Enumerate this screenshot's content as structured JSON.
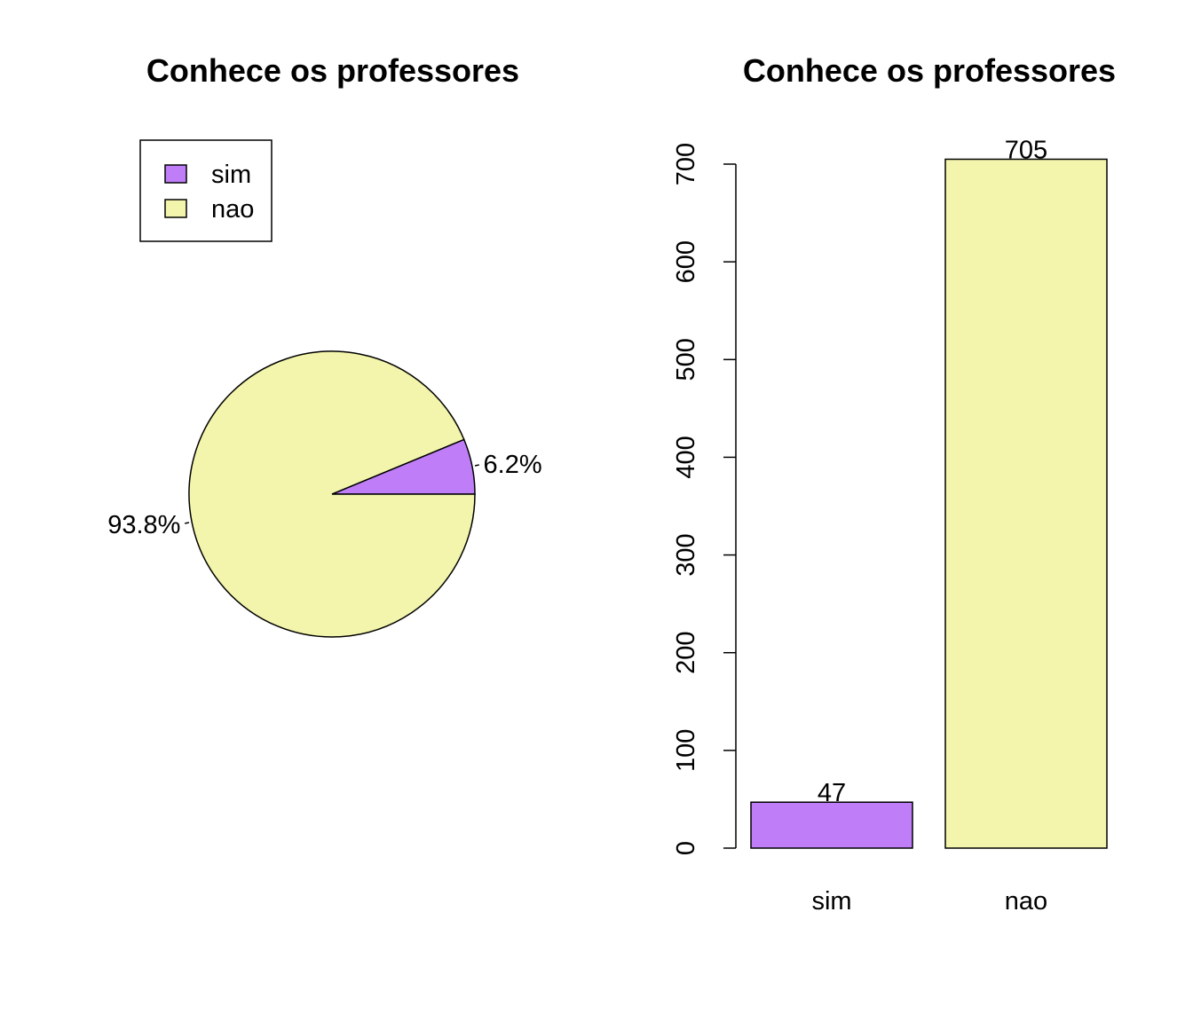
{
  "charts": [
    {
      "type": "pie",
      "title": "Conhece os professores",
      "categories": [
        "sim",
        "nao"
      ],
      "values": [
        47,
        705
      ],
      "slice_labels": [
        "6.2%",
        "93.8%"
      ],
      "colors": [
        "#bf7ef7",
        "#f2f5ab"
      ],
      "legend": {
        "position": "top-left",
        "entries": [
          "sim",
          "nao"
        ]
      }
    },
    {
      "type": "bar",
      "title": "Conhece os professores",
      "categories": [
        "sim",
        "nao"
      ],
      "values": [
        47,
        705
      ],
      "colors": [
        "#bf7ef7",
        "#f2f5ab"
      ],
      "ylim": [
        0,
        700
      ],
      "yticks": [
        0,
        100,
        200,
        300,
        400,
        500,
        600,
        700
      ],
      "xlabel": "",
      "ylabel": "",
      "data_labels": [
        "47",
        "705"
      ]
    }
  ]
}
